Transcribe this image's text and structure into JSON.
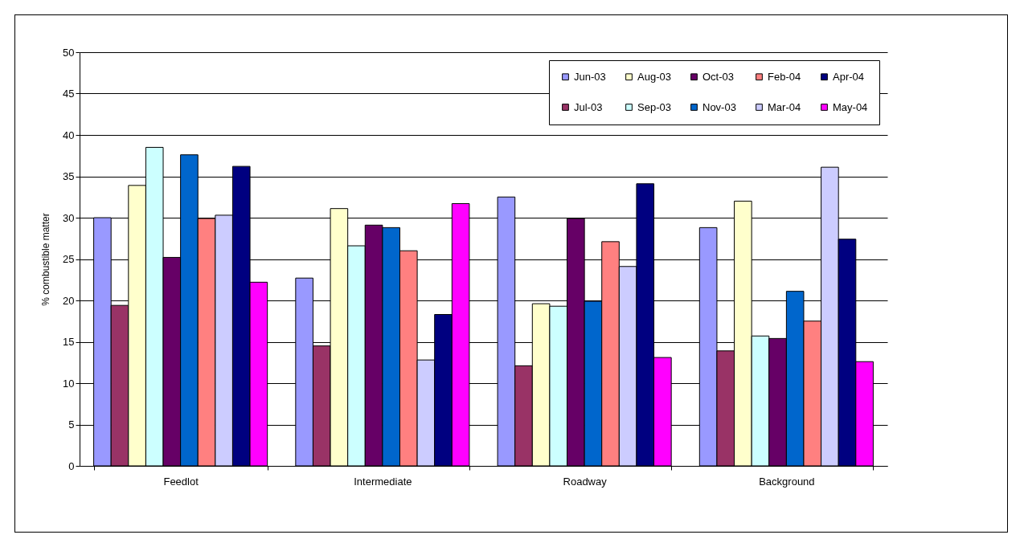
{
  "chart_data": {
    "type": "bar",
    "ylabel": "% combustible matter",
    "categories": [
      "Feedlot",
      "Intermediate",
      "Roadway",
      "Background"
    ],
    "ylim": [
      0,
      50
    ],
    "yticks": [
      0,
      5,
      10,
      15,
      20,
      25,
      30,
      35,
      40,
      45,
      50
    ],
    "grid": "y",
    "legend": "top right",
    "series": [
      {
        "name": "Jun-03",
        "color": "#9999ff",
        "values": [
          30,
          22.7,
          32.5,
          28.8
        ]
      },
      {
        "name": "Jul-03",
        "color": "#993366",
        "values": [
          19.4,
          14.5,
          12.1,
          13.9
        ]
      },
      {
        "name": "Aug-03",
        "color": "#ffffcc",
        "values": [
          33.9,
          31.1,
          19.6,
          32.0
        ]
      },
      {
        "name": "Sep-03",
        "color": "#ccffff",
        "values": [
          38.5,
          26.6,
          19.3,
          15.7
        ]
      },
      {
        "name": "Oct-03",
        "color": "#660066",
        "values": [
          25.2,
          29.1,
          29.9,
          15.4
        ]
      },
      {
        "name": "Nov-03",
        "color": "#0066cc",
        "values": [
          37.6,
          28.8,
          19.9,
          21.1
        ]
      },
      {
        "name": "Feb-04",
        "color": "#ff8080",
        "values": [
          29.9,
          26.0,
          27.1,
          17.5
        ]
      },
      {
        "name": "Mar-04",
        "color": "#ccccff",
        "values": [
          30.3,
          12.8,
          24.1,
          36.1
        ]
      },
      {
        "name": "Apr-04",
        "color": "#000080",
        "values": [
          36.2,
          18.3,
          34.1,
          27.4
        ]
      },
      {
        "name": "May-04",
        "color": "#ff00ff",
        "values": [
          22.2,
          31.7,
          13.1,
          12.6
        ]
      }
    ]
  }
}
